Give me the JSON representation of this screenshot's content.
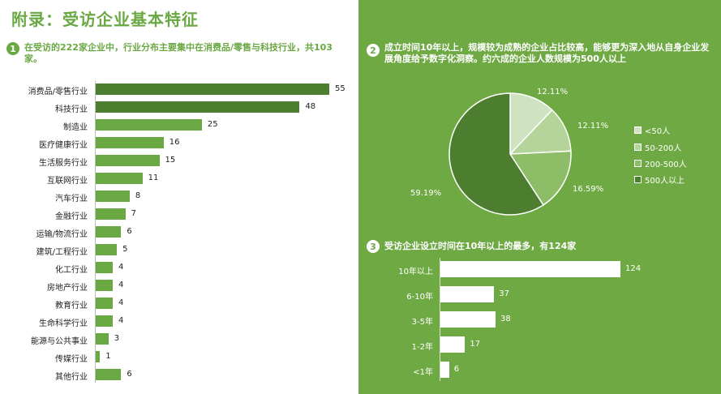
{
  "page": {
    "title": "附录：受访企业基本特征"
  },
  "section1": {
    "number": "1",
    "heading": "在受访的222家企业中，行业分布主要集中在消费品/零售与科技行业，共103家。"
  },
  "section2": {
    "number": "2",
    "heading": "成立时间10年以上，规模较为成熟的企业占比较高，能够更为深入地从自身企业发展角度给予数字化洞察。约六成的企业人数规模为500人以上"
  },
  "section3": {
    "number": "3",
    "heading": "受访企业设立时间在10年以上的最多，有124家"
  },
  "chart_data": [
    {
      "type": "bar",
      "orientation": "horizontal",
      "categories": [
        "消费品/零售行业",
        "科技行业",
        "制造业",
        "医疗健康行业",
        "生活服务行业",
        "互联网行业",
        "汽车行业",
        "金融行业",
        "运输/物流行业",
        "建筑/工程行业",
        "化工行业",
        "房地产行业",
        "教育行业",
        "生命科学行业",
        "能源与公共事业",
        "传媒行业",
        "其他行业"
      ],
      "values": [
        55,
        48,
        25,
        16,
        15,
        11,
        8,
        7,
        6,
        5,
        4,
        4,
        4,
        4,
        3,
        1,
        6
      ],
      "colors": {
        "highlight": "#4d7e2f",
        "normal": "#6aa843"
      },
      "highlight_count": 2
    },
    {
      "type": "pie",
      "slices": [
        {
          "category": "<50人",
          "value": 12.11,
          "label": "12.11%",
          "color": "#cfe3c1"
        },
        {
          "category": "50-200人",
          "value": 12.11,
          "label": "12.11%",
          "color": "#b5d49a"
        },
        {
          "category": "200-500人",
          "value": 16.59,
          "label": "16.59%",
          "color": "#8dbd66"
        },
        {
          "category": "500人以上",
          "value": 59.19,
          "label": "59.19%",
          "color": "#4d7e2f"
        }
      ],
      "legend": [
        "<50人",
        "50-200人",
        "200-500人",
        "500人以上"
      ],
      "legend_position": "right"
    },
    {
      "type": "bar",
      "orientation": "horizontal",
      "categories": [
        "10年以上",
        "6-10年",
        "3-5年",
        "1-2年",
        "<1年"
      ],
      "values": [
        124,
        37,
        38,
        17,
        6
      ],
      "color": "#ffffff"
    }
  ]
}
